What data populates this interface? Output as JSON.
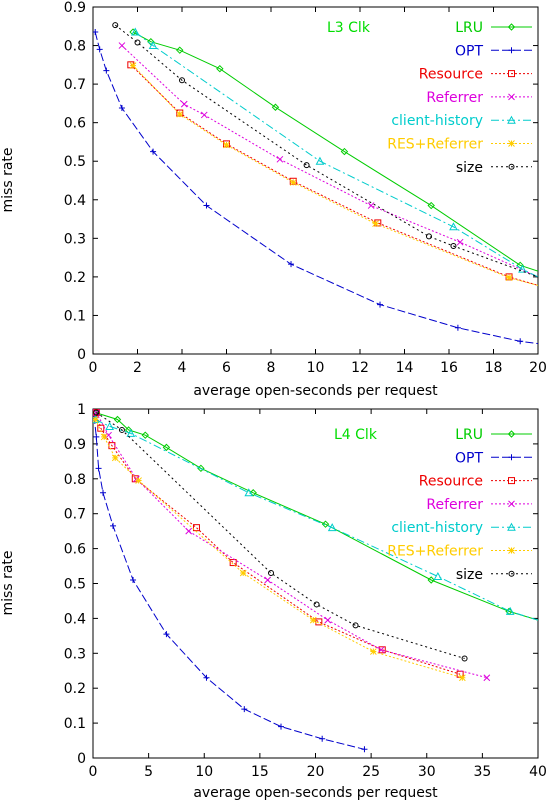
{
  "chart_data": [
    {
      "type": "line",
      "title": "",
      "xlabel": "average open-seconds per request",
      "ylabel": "miss rate",
      "xlim": [
        0,
        20
      ],
      "ylim": [
        0,
        0.9
      ],
      "xticks": [
        "0",
        "2",
        "4",
        "6",
        "8",
        "10",
        "12",
        "14",
        "16",
        "18",
        "20"
      ],
      "yticks": [
        "0",
        "0.1",
        "0.2",
        "0.3",
        "0.4",
        "0.5",
        "0.6",
        "0.7",
        "0.8",
        "0.9"
      ],
      "annotation": "L3 Clk",
      "annotation_color": "#00dd00",
      "legend_position": "top-right",
      "series": [
        {
          "name": "LRU",
          "color": "#00cc00",
          "dash": "",
          "marker": "diamond",
          "x": [
            1.8,
            2.6,
            3.9,
            5.7,
            8.2,
            11.3,
            15.2,
            19.2,
            20
          ],
          "y": [
            0.835,
            0.81,
            0.788,
            0.74,
            0.64,
            0.525,
            0.385,
            0.23,
            0.215
          ]
        },
        {
          "name": "OPT",
          "color": "#0000cc",
          "dash": "8,3",
          "marker": "plus",
          "x": [
            0.1,
            0.3,
            0.6,
            1.3,
            2.7,
            5.1,
            8.9,
            12.9,
            16.4,
            19.2,
            20
          ],
          "y": [
            0.835,
            0.79,
            0.735,
            0.638,
            0.525,
            0.385,
            0.233,
            0.128,
            0.068,
            0.033,
            0.027
          ]
        },
        {
          "name": "Resource",
          "color": "#ee0000",
          "dash": "2,2",
          "marker": "square",
          "x": [
            1.7,
            3.9,
            6.0,
            9.0,
            12.8,
            18.7,
            20
          ],
          "y": [
            0.75,
            0.625,
            0.545,
            0.448,
            0.34,
            0.2,
            0.178
          ]
        },
        {
          "name": "Referrer",
          "color": "#dd00dd",
          "dash": "2,2",
          "marker": "x",
          "x": [
            1.3,
            4.1,
            5.0,
            8.4,
            12.5,
            16.5,
            20
          ],
          "y": [
            0.8,
            0.648,
            0.62,
            0.505,
            0.385,
            0.29,
            0.2
          ]
        },
        {
          "name": "client-history",
          "color": "#00cccc",
          "dash": "8,3,2,3",
          "marker": "triangle",
          "x": [
            1.9,
            2.7,
            10.2,
            16.2,
            19.3,
            20
          ],
          "y": [
            0.835,
            0.8,
            0.5,
            0.33,
            0.22,
            0.2
          ]
        },
        {
          "name": "RES+Referrer",
          "color": "#ffcc00",
          "dash": "2,2",
          "marker": "star",
          "x": [
            1.8,
            3.9,
            6.0,
            9.0,
            12.7,
            18.7,
            20
          ],
          "y": [
            0.748,
            0.622,
            0.542,
            0.445,
            0.338,
            0.198,
            0.178
          ]
        },
        {
          "name": "size",
          "color": "#000000",
          "dash": "2,3",
          "marker": "circle",
          "x": [
            1.0,
            2.0,
            4.0,
            9.6,
            15.1,
            16.2,
            20
          ],
          "y": [
            0.853,
            0.808,
            0.71,
            0.49,
            0.305,
            0.28,
            0.2
          ]
        }
      ]
    },
    {
      "type": "line",
      "title": "",
      "xlabel": "average open-seconds per request",
      "ylabel": "miss rate",
      "xlim": [
        0,
        40
      ],
      "ylim": [
        0,
        1
      ],
      "xticks": [
        "0",
        "5",
        "10",
        "15",
        "20",
        "25",
        "30",
        "35",
        "40"
      ],
      "yticks": [
        "0",
        "0.1",
        "0.2",
        "0.3",
        "0.4",
        "0.5",
        "0.6",
        "0.7",
        "0.8",
        "0.9",
        "1"
      ],
      "annotation": "L4 Clk",
      "annotation_color": "#00dd00",
      "legend_position": "top-right",
      "series": [
        {
          "name": "LRU",
          "color": "#00cc00",
          "dash": "",
          "marker": "diamond",
          "x": [
            0.2,
            2.2,
            3.2,
            4.7,
            6.6,
            9.7,
            14.4,
            20.9,
            30.4,
            37.4,
            40
          ],
          "y": [
            0.99,
            0.97,
            0.94,
            0.925,
            0.89,
            0.83,
            0.76,
            0.67,
            0.51,
            0.42,
            0.395
          ]
        },
        {
          "name": "OPT",
          "color": "#0000cc",
          "dash": "8,3",
          "marker": "plus",
          "x": [
            0.1,
            0.3,
            0.5,
            0.9,
            1.8,
            3.6,
            6.6,
            10.2,
            13.6,
            16.9,
            20.6,
            24.4
          ],
          "y": [
            0.98,
            0.92,
            0.83,
            0.76,
            0.665,
            0.51,
            0.355,
            0.23,
            0.14,
            0.09,
            0.055,
            0.025
          ]
        },
        {
          "name": "Resource",
          "color": "#ee0000",
          "dash": "2,2",
          "marker": "square",
          "x": [
            0.3,
            0.7,
            1.7,
            3.8,
            9.3,
            12.6,
            20.3,
            26.0,
            33.0
          ],
          "y": [
            0.99,
            0.945,
            0.895,
            0.8,
            0.66,
            0.56,
            0.39,
            0.31,
            0.24
          ]
        },
        {
          "name": "Referrer",
          "color": "#dd00dd",
          "dash": "2,2",
          "marker": "x",
          "x": [
            0.3,
            1.4,
            3.9,
            8.6,
            15.7,
            21.1,
            25.9,
            35.4
          ],
          "y": [
            0.99,
            0.925,
            0.8,
            0.65,
            0.51,
            0.395,
            0.31,
            0.23
          ]
        },
        {
          "name": "client-history",
          "color": "#00cccc",
          "dash": "8,3,2,3",
          "marker": "triangle",
          "x": [
            0.2,
            1.5,
            3.4,
            14.0,
            21.5,
            31.0,
            37.5,
            40
          ],
          "y": [
            0.97,
            0.95,
            0.93,
            0.76,
            0.66,
            0.52,
            0.42,
            0.395
          ]
        },
        {
          "name": "RES+Referrer",
          "color": "#ffcc00",
          "dash": "2,2",
          "marker": "star",
          "x": [
            0.2,
            1.0,
            2.0,
            4.1,
            13.5,
            19.8,
            25.2,
            33.2
          ],
          "y": [
            0.97,
            0.92,
            0.86,
            0.795,
            0.53,
            0.395,
            0.305,
            0.23
          ]
        },
        {
          "name": "size",
          "color": "#000000",
          "dash": "2,3",
          "marker": "circle",
          "x": [
            0.3,
            2.6,
            16.0,
            20.1,
            23.6,
            33.4
          ],
          "y": [
            0.99,
            0.94,
            0.53,
            0.44,
            0.38,
            0.285
          ]
        }
      ]
    }
  ]
}
